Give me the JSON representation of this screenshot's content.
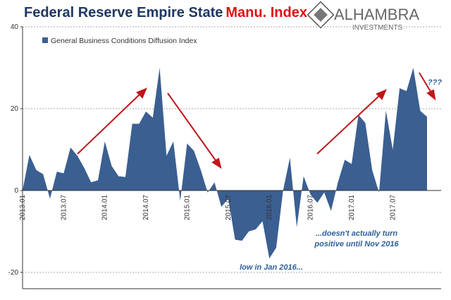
{
  "chart_data": {
    "type": "area",
    "title": "Federal Reserve Empire State",
    "title_highlight": "Manu. Index",
    "logo": {
      "name": "ALHAMBRA",
      "subtitle": "INVESTMENTS"
    },
    "series": [
      {
        "name": "General Business Conditions Diffusion Index",
        "color": "#3b5f91",
        "values": [
          0,
          8.7,
          5,
          4,
          -2,
          4.6,
          4.2,
          10.5,
          8.5,
          5.5,
          2,
          2.5,
          12,
          6,
          3.5,
          3.3,
          16.3,
          16.3,
          19.3,
          17.8,
          30,
          8.5,
          12,
          -2.5,
          11.5,
          9.7,
          5,
          -0.5,
          2,
          -4,
          -2,
          -12,
          -12.3,
          -10,
          -9.5,
          -7.5,
          -16.6,
          -14,
          0,
          8,
          -9,
          3.5,
          -1,
          -3,
          -0.5,
          -5,
          2,
          7.5,
          6.5,
          18.5,
          16.5,
          5,
          -0.5,
          19.5,
          10,
          25,
          24.3,
          30,
          19.5,
          18
        ]
      }
    ],
    "categories": [
      "2013.01",
      null,
      null,
      null,
      null,
      null,
      "2013.07",
      null,
      null,
      null,
      null,
      null,
      "2014.01",
      null,
      null,
      null,
      null,
      null,
      "2014.07",
      null,
      null,
      null,
      null,
      null,
      "2015.01",
      null,
      null,
      null,
      null,
      null,
      "2015.07",
      null,
      null,
      null,
      null,
      null,
      "2016.01",
      null,
      null,
      null,
      null,
      null,
      "2016.07",
      null,
      null,
      null,
      null,
      null,
      "2017.01",
      null,
      null,
      null,
      null,
      null,
      "2017.07",
      null,
      null,
      null,
      null,
      null
    ],
    "ylim": [
      -24,
      40
    ],
    "yticks": [
      -20,
      0,
      20,
      40
    ],
    "grid": true,
    "annotations": {
      "low": "low in Jan 2016...",
      "positive": [
        "...doesn't actually turn",
        "positive until Nov 2016"
      ],
      "question": "???"
    }
  }
}
